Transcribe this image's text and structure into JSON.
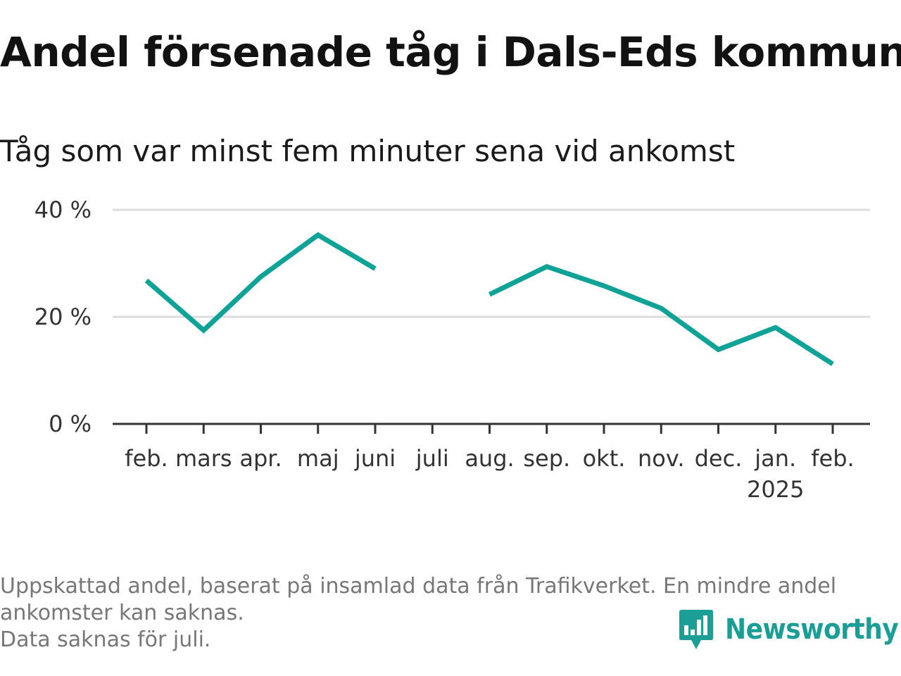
{
  "title": "Andel försenade tåg i Dals-Eds kommun",
  "subtitle": "Tåg som var minst fem minuter sena vid ankomst",
  "footnote": {
    "line1": "Uppskattad andel, baserat på insamlad data från Trafikverket. En mindre andel",
    "line2": "ankomster kan saknas.",
    "line3": "Data saknas för juli."
  },
  "brand": {
    "name": "Newsworthy",
    "color": "#1a9e96"
  },
  "chart_data": {
    "type": "line",
    "categories": [
      "feb.",
      "mars",
      "apr.",
      "maj",
      "juni",
      "juli",
      "aug.",
      "sep.",
      "okt.",
      "nov.",
      "dec.",
      "jan.",
      "feb."
    ],
    "year_labels": [
      "",
      "",
      "",
      "",
      "",
      "",
      "",
      "",
      "",
      "",
      "",
      "2025",
      ""
    ],
    "series": [
      {
        "values": [
          26.8,
          17.5,
          27.5,
          35.3,
          29.0,
          null,
          24.2,
          29.4,
          25.8,
          21.6,
          13.9,
          18.0,
          11.2
        ]
      }
    ],
    "ylim": [
      0,
      40
    ],
    "yticks": [
      0,
      20,
      40
    ],
    "ytick_labels": [
      "0 %",
      "20 %",
      "40 %"
    ],
    "line_color": "#0fa296",
    "grid_color": "#dcdcdc",
    "axis_color": "#333333",
    "grid": true,
    "xlabel": "",
    "ylabel": ""
  }
}
